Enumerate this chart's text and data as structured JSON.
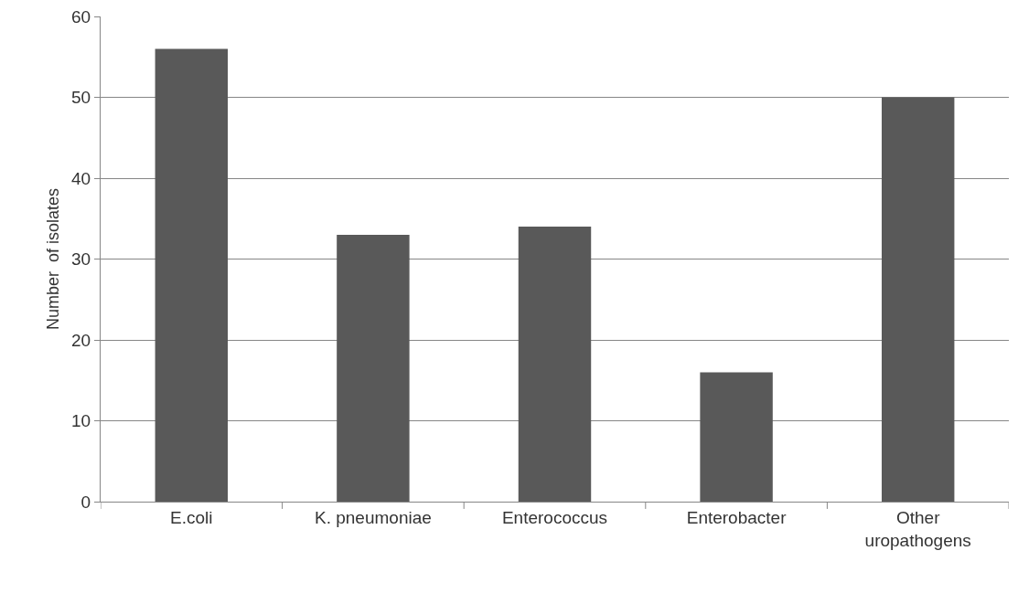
{
  "chart_data": {
    "type": "bar",
    "ylabel": "Number  of isolates",
    "categories": [
      "E.coli",
      "K. pneumoniae",
      "Enterococcus",
      "Enterobacter",
      "Other uropathogens"
    ],
    "values": [
      56,
      33,
      34,
      16,
      50
    ],
    "color": "#595959",
    "ylim": [
      0,
      60
    ],
    "yticks": [
      0,
      10,
      20,
      30,
      40,
      50,
      60
    ],
    "grid": "y",
    "legend": false
  }
}
